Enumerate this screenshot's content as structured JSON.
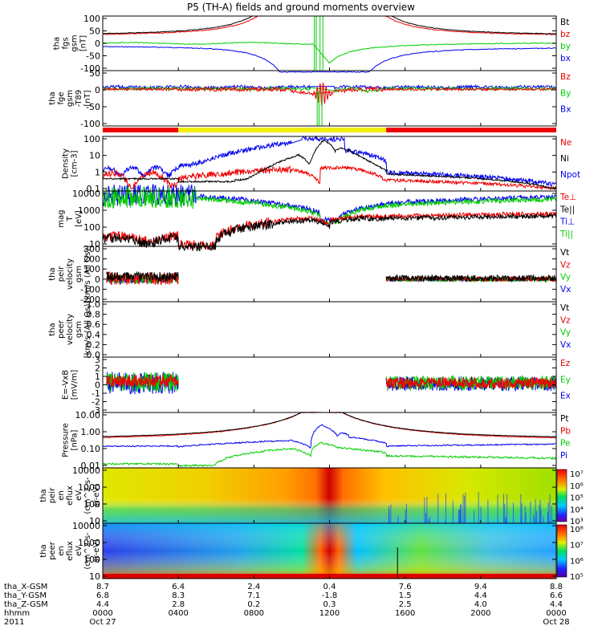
{
  "title": "P5 (TH-A) fields and ground moments overview",
  "colors": {
    "black": "#000000",
    "red": "#ee0000",
    "green": "#00cc00",
    "blue": "#0000ee",
    "yellow": "#f2ee00",
    "bar_red": "#ee0000"
  },
  "chart_data": [
    {
      "type": "line",
      "id": "fgs",
      "ylabel": [
        "tha",
        "fgs",
        "gsm",
        "[nT]"
      ],
      "ylim": [
        -100,
        100
      ],
      "yticks": [
        "100",
        "50",
        "0",
        "-50",
        "-100"
      ],
      "legend": [
        {
          "name": "Bt",
          "color": "#000000"
        },
        {
          "name": "bz",
          "color": "#ee0000"
        },
        {
          "name": "by",
          "color": "#00cc00"
        },
        {
          "name": "bx",
          "color": "#0000ee"
        }
      ]
    },
    {
      "type": "line",
      "id": "fge",
      "ylabel": [
        "tha",
        "fge",
        "gsm",
        "-T89",
        "[nT]"
      ],
      "ylim": [
        -130,
        60
      ],
      "yticks": [
        "50",
        "0",
        "-50",
        "-100"
      ],
      "legend": [
        {
          "name": "Bz",
          "color": "#ee0000"
        },
        {
          "name": "By",
          "color": "#00cc00"
        },
        {
          "name": "Bx",
          "color": "#0000ee"
        }
      ]
    },
    {
      "type": "line",
      "id": "density",
      "ylabel": [
        "Density",
        "[cm-3]"
      ],
      "ylim": [
        0.1,
        300
      ],
      "yticks": [
        "100",
        "10",
        "1",
        "0.1"
      ],
      "legend": [
        {
          "name": "Ne",
          "color": "#ee0000"
        },
        {
          "name": "Ni",
          "color": "#000000"
        },
        {
          "name": "Npot",
          "color": "#0000ee"
        }
      ]
    },
    {
      "type": "line",
      "id": "temperature",
      "ylabel": [
        "mag",
        "T",
        "[eV]"
      ],
      "ylim": [
        10,
        12000
      ],
      "yticks": [
        "10000",
        "1000",
        "100",
        "10"
      ],
      "legend": [
        {
          "name": "Te⊥",
          "color": "#ee0000"
        },
        {
          "name": "Te||",
          "color": "#000000"
        },
        {
          "name": "Ti⊥",
          "color": "#0000ee"
        },
        {
          "name": "Ti||",
          "color": "#00cc00"
        }
      ]
    },
    {
      "type": "line",
      "id": "peir_velocity",
      "ylabel": [
        "tha",
        "peir",
        "velocity",
        "gsm",
        "[km/s (All Qs)]"
      ],
      "ylim": [
        -200,
        300
      ],
      "yticks": [
        "300",
        "200",
        "100",
        "0",
        "-100",
        "-200"
      ],
      "legend": [
        {
          "name": "Vt",
          "color": "#000000"
        },
        {
          "name": "Vz",
          "color": "#ee0000"
        },
        {
          "name": "Vy",
          "color": "#00cc00"
        },
        {
          "name": "Vx",
          "color": "#0000ee"
        }
      ]
    },
    {
      "type": "line",
      "id": "peer_velocity",
      "ylabel": [
        "tha",
        "peer",
        "velocity",
        "gsm",
        "[km/s (All Qs)]"
      ],
      "ylim": [
        0,
        1
      ],
      "yticks": [
        "1.0",
        "0.8",
        "0.6",
        "0.4",
        "0.2",
        "0.0"
      ],
      "legend": [
        {
          "name": "Vt",
          "color": "#000000"
        },
        {
          "name": "Vz",
          "color": "#ee0000"
        },
        {
          "name": "Vy",
          "color": "#00cc00"
        },
        {
          "name": "Vx",
          "color": "#0000ee"
        }
      ]
    },
    {
      "type": "line",
      "id": "efield",
      "ylabel": [
        "E=-VxB",
        "[mV/m]"
      ],
      "ylim": [
        -3,
        3
      ],
      "yticks": [
        "3",
        "2",
        "1",
        "0",
        "-1",
        "-2",
        "-3"
      ],
      "legend": [
        {
          "name": "Ez",
          "color": "#ee0000"
        },
        {
          "name": "Ey",
          "color": "#00cc00"
        },
        {
          "name": "Ex",
          "color": "#0000ee"
        }
      ]
    },
    {
      "type": "line",
      "id": "pressure",
      "ylabel": [
        "Pressure",
        "[nPa]"
      ],
      "ylim": [
        0.005,
        20
      ],
      "yticks": [
        "10.00",
        "1.00",
        "0.10",
        "0.01"
      ],
      "legend": [
        {
          "name": "Pt",
          "color": "#000000"
        },
        {
          "name": "Pb",
          "color": "#ee0000"
        },
        {
          "name": "Pe",
          "color": "#00cc00"
        },
        {
          "name": "Pi",
          "color": "#0000ee"
        }
      ]
    },
    {
      "type": "heatmap",
      "id": "peir_spec",
      "ylabel": [
        "tha",
        "peir",
        "en",
        "eflux",
        "eV",
        "(cm^2-s-",
        "sr-eV)"
      ],
      "ylim": [
        10,
        20000
      ],
      "yticks": [
        "10000",
        "1000",
        "100",
        "10"
      ],
      "colorbar_ticks": [
        "10⁷",
        "10⁶",
        "10⁵",
        "10⁴",
        "10³"
      ]
    },
    {
      "type": "heatmap",
      "id": "peer_spec",
      "ylabel": [
        "tha",
        "peer",
        "en",
        "eflux",
        "eV",
        "(cm^2-s-",
        "sr-eV)"
      ],
      "ylim": [
        10,
        20000
      ],
      "yticks": [
        "10000",
        "1000",
        "100",
        "10"
      ],
      "colorbar_ticks": [
        "10⁸",
        "10⁷",
        "10⁶",
        "10⁵"
      ]
    }
  ],
  "status_bar": {
    "segments": [
      {
        "from_hour": 0,
        "to_hour": 4.0,
        "color": "red"
      },
      {
        "from_hour": 4.0,
        "to_hour": 15.0,
        "color": "yellow"
      },
      {
        "from_hour": 15.0,
        "to_hour": 24.0,
        "color": "red"
      }
    ]
  },
  "time_axis": {
    "row_labels": [
      "tha_X-GSM",
      "tha_Y-GSM",
      "tha_Z-GSM",
      "hhmm",
      "2011"
    ],
    "hours": [
      0,
      4,
      8,
      12,
      16,
      20,
      24
    ],
    "x_gsm": [
      "8.7",
      "6.4",
      "2.4",
      "0.4",
      "7.6",
      "9.4",
      "8.8"
    ],
    "y_gsm": [
      "6.8",
      "8.3",
      "7.1",
      "-1.8",
      "1.5",
      "4.4",
      "6.6"
    ],
    "z_gsm": [
      "4.4",
      "2.8",
      "0.2",
      "0.3",
      "2.5",
      "4.0",
      "4.4"
    ],
    "hhmm": [
      "0000",
      "0400",
      "0800",
      "1200",
      "1600",
      "2000",
      "0000"
    ],
    "date_start": "Oct 27",
    "date_end": "Oct 28"
  }
}
